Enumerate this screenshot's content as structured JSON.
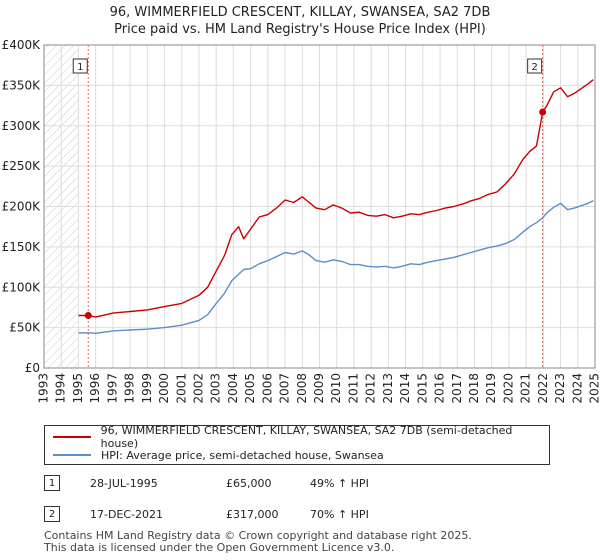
{
  "title_line1": "96, WIMMERFIELD CRESCENT, KILLAY, SWANSEA, SA2 7DB",
  "title_line2": "Price paid vs. HM Land Registry's House Price Index (HPI)",
  "chart_data": {
    "type": "line",
    "xlim": [
      1993,
      2025
    ],
    "ylim": [
      0,
      400000
    ],
    "y_ticks": [
      0,
      50000,
      100000,
      150000,
      200000,
      250000,
      300000,
      350000,
      400000
    ],
    "y_tick_labels": [
      "£0",
      "£50K",
      "£100K",
      "£150K",
      "£200K",
      "£250K",
      "£300K",
      "£350K",
      "£400K"
    ],
    "x_ticks": [
      1993,
      1994,
      1995,
      1996,
      1997,
      1998,
      1999,
      2000,
      2001,
      2002,
      2003,
      2004,
      2005,
      2006,
      2007,
      2008,
      2009,
      2010,
      2011,
      2012,
      2013,
      2014,
      2015,
      2016,
      2017,
      2018,
      2019,
      2020,
      2021,
      2022,
      2023,
      2024,
      2025
    ],
    "x_tick_labels": [
      "1993",
      "1994",
      "1995",
      "1996",
      "1997",
      "1998",
      "1999",
      "2000",
      "2001",
      "2002",
      "2003",
      "2004",
      "2005",
      "2006",
      "2007",
      "2008",
      "2009",
      "2010",
      "2011",
      "2012",
      "2013",
      "2014",
      "2015",
      "2016",
      "2017",
      "2018",
      "2019",
      "2020",
      "2021",
      "2022",
      "2023",
      "2024",
      "2025"
    ],
    "hatch_before": 1995.0,
    "grid": true,
    "series": [
      {
        "name": "96, WIMMERFIELD CRESCENT, KILLAY, SWANSEA, SA2 7DB (semi-detached house)",
        "color": "#cc0000",
        "x": [
          1995.0,
          1995.57,
          1996.0,
          1997.0,
          1998.0,
          1999.0,
          2000.0,
          2001.0,
          2002.0,
          2002.5,
          2003.0,
          2003.5,
          2003.9,
          2004.3,
          2004.6,
          2005.0,
          2005.5,
          2006.0,
          2006.5,
          2007.0,
          2007.5,
          2008.0,
          2008.4,
          2008.8,
          2009.3,
          2009.8,
          2010.3,
          2010.8,
          2011.3,
          2011.8,
          2012.3,
          2012.8,
          2013.3,
          2013.8,
          2014.3,
          2014.8,
          2015.3,
          2015.8,
          2016.3,
          2016.8,
          2017.3,
          2017.8,
          2018.3,
          2018.8,
          2019.3,
          2019.8,
          2020.3,
          2020.8,
          2021.2,
          2021.6,
          2021.96,
          2022.2,
          2022.6,
          2023.0,
          2023.4,
          2023.8,
          2024.2,
          2024.6,
          2024.9
        ],
        "y": [
          65000,
          65000,
          63000,
          68000,
          70000,
          72000,
          76000,
          80000,
          90000,
          100000,
          120000,
          140000,
          165000,
          175000,
          160000,
          172000,
          187000,
          190000,
          198000,
          208000,
          205000,
          212000,
          205000,
          198000,
          196000,
          202000,
          198000,
          192000,
          193000,
          189000,
          188000,
          190000,
          186000,
          188000,
          191000,
          190000,
          193000,
          195000,
          198000,
          200000,
          203000,
          207000,
          210000,
          215000,
          218000,
          228000,
          240000,
          258000,
          268000,
          275000,
          317000,
          325000,
          342000,
          347000,
          336000,
          340000,
          346000,
          352000,
          357000
        ]
      },
      {
        "name": "HPI: Average price, semi-detached house, Swansea",
        "color": "#5b8fc7",
        "x": [
          1995.0,
          1995.57,
          1996.0,
          1997.0,
          1998.0,
          1999.0,
          2000.0,
          2001.0,
          2002.0,
          2002.5,
          2003.0,
          2003.5,
          2003.9,
          2004.3,
          2004.6,
          2005.0,
          2005.5,
          2006.0,
          2006.5,
          2007.0,
          2007.5,
          2008.0,
          2008.4,
          2008.8,
          2009.3,
          2009.8,
          2010.3,
          2010.8,
          2011.3,
          2011.8,
          2012.3,
          2012.8,
          2013.3,
          2013.8,
          2014.3,
          2014.8,
          2015.3,
          2015.8,
          2016.3,
          2016.8,
          2017.3,
          2017.8,
          2018.3,
          2018.8,
          2019.3,
          2019.8,
          2020.3,
          2020.8,
          2021.2,
          2021.6,
          2021.96,
          2022.2,
          2022.6,
          2023.0,
          2023.4,
          2023.8,
          2024.2,
          2024.6,
          2024.9
        ],
        "y": [
          43500,
          43600,
          43000,
          46000,
          47000,
          48000,
          50000,
          53000,
          59000,
          66000,
          80000,
          93000,
          108000,
          116000,
          122000,
          123000,
          129000,
          133000,
          138000,
          143000,
          141000,
          145000,
          140000,
          133000,
          131000,
          134000,
          132000,
          128000,
          128000,
          126000,
          125000,
          126000,
          124000,
          126000,
          129000,
          128000,
          131000,
          133000,
          135000,
          137000,
          140000,
          143000,
          146000,
          149000,
          151000,
          154000,
          159000,
          168000,
          175000,
          180000,
          186000,
          192000,
          199000,
          204000,
          196000,
          198000,
          201000,
          204000,
          207000
        ]
      }
    ],
    "sales": [
      {
        "label": "1",
        "x": 1995.57,
        "y": 65000
      },
      {
        "label": "2",
        "x": 2021.96,
        "y": 317000
      }
    ]
  },
  "legend": {
    "items": [
      {
        "label": "96, WIMMERFIELD CRESCENT, KILLAY, SWANSEA, SA2 7DB (semi-detached house)",
        "color": "#cc0000"
      },
      {
        "label": "HPI: Average price, semi-detached house, Swansea",
        "color": "#5b8fc7"
      }
    ]
  },
  "transactions": [
    {
      "num": "1",
      "date": "28-JUL-1995",
      "price": "£65,000",
      "hpi": "49% ↑ HPI"
    },
    {
      "num": "2",
      "date": "17-DEC-2021",
      "price": "£317,000",
      "hpi": "70% ↑ HPI"
    }
  ],
  "footer": {
    "line1": "Contains HM Land Registry data © Crown copyright and database right 2025.",
    "line2": "This data is licensed under the Open Government Licence v3.0."
  }
}
